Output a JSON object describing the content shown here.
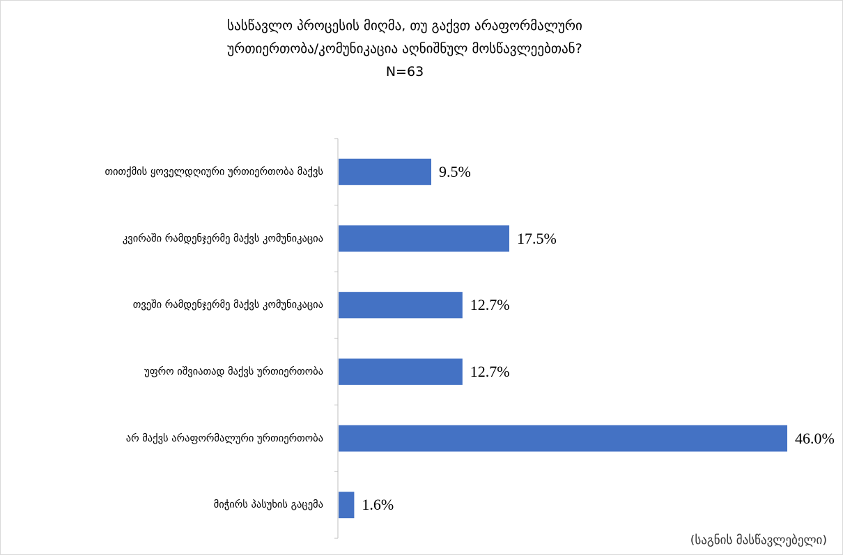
{
  "chart_data": {
    "type": "bar",
    "orientation": "horizontal",
    "title_lines": [
      "სასწავლო პროცესის მიღმა, თუ გაქვთ არაფორმალური",
      "ურთიერთობა/კომუნიკაცია აღნიშნულ მოსწავლეებთან?",
      "N=63"
    ],
    "categories": [
      "თითქმის ყოველდღიური ურთიერთობა მაქვს",
      "კვირაში რამდენჯერმე მაქვს კომუნიკაცია",
      "თვეში რამდენჯერმე მაქვს კომუნიკაცია",
      "უფრო იშვიათად მაქვს ურთიერთობა",
      "არ მაქვს არაფორმალური ურთიერთობა",
      "მიჭირს პასუხის გაცემა"
    ],
    "values": [
      9.5,
      17.5,
      12.7,
      12.7,
      46.0,
      1.6
    ],
    "value_labels": [
      "9.5%",
      "17.5%",
      "12.7%",
      "12.7%",
      "46.0%",
      "1.6%"
    ],
    "xlim": [
      0,
      46.0
    ],
    "bar_color": "#4472C4",
    "axis_color": "#bfbfbf",
    "gridlines": false,
    "legend": "none",
    "source_note": "(საგნის მასწავლებელი)"
  }
}
